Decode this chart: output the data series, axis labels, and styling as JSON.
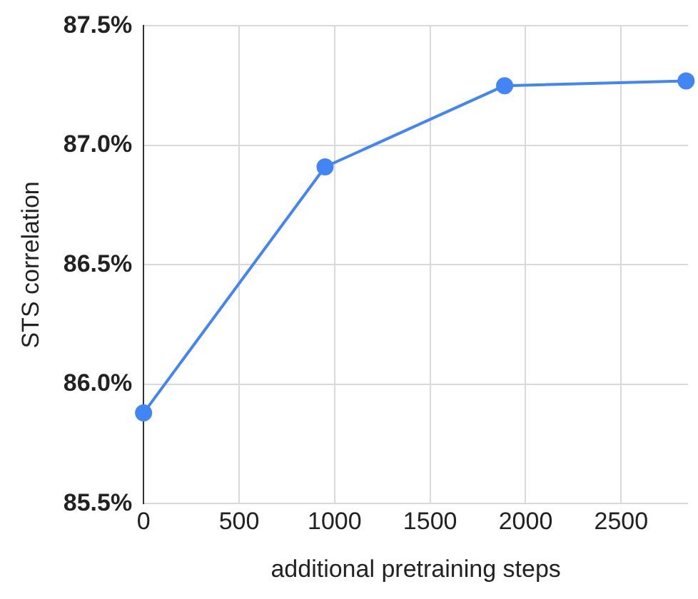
{
  "chart_data": {
    "type": "line",
    "xlabel": "additional pretraining steps",
    "ylabel": "STS correlation",
    "x": [
      0,
      950,
      1890,
      2840
    ],
    "series": [
      {
        "color": "#4285f4",
        "values": [
          85.88,
          86.91,
          87.25,
          87.27
        ]
      }
    ],
    "xlim": [
      0,
      2850
    ],
    "xticks": [
      0,
      500,
      1000,
      1500,
      2000,
      2500
    ],
    "ylim": [
      85.5,
      87.5
    ],
    "yticks": [
      {
        "value": 85.5,
        "label": "85.5%"
      },
      {
        "value": 86,
        "label": "86.0%"
      },
      {
        "value": 86.5,
        "label": "86.5%"
      },
      {
        "value": 87,
        "label": "87.0%"
      },
      {
        "value": 87.5,
        "label": "87.5%"
      }
    ],
    "grid": true,
    "legend": false,
    "marker": "circle",
    "line_style": "solid"
  }
}
